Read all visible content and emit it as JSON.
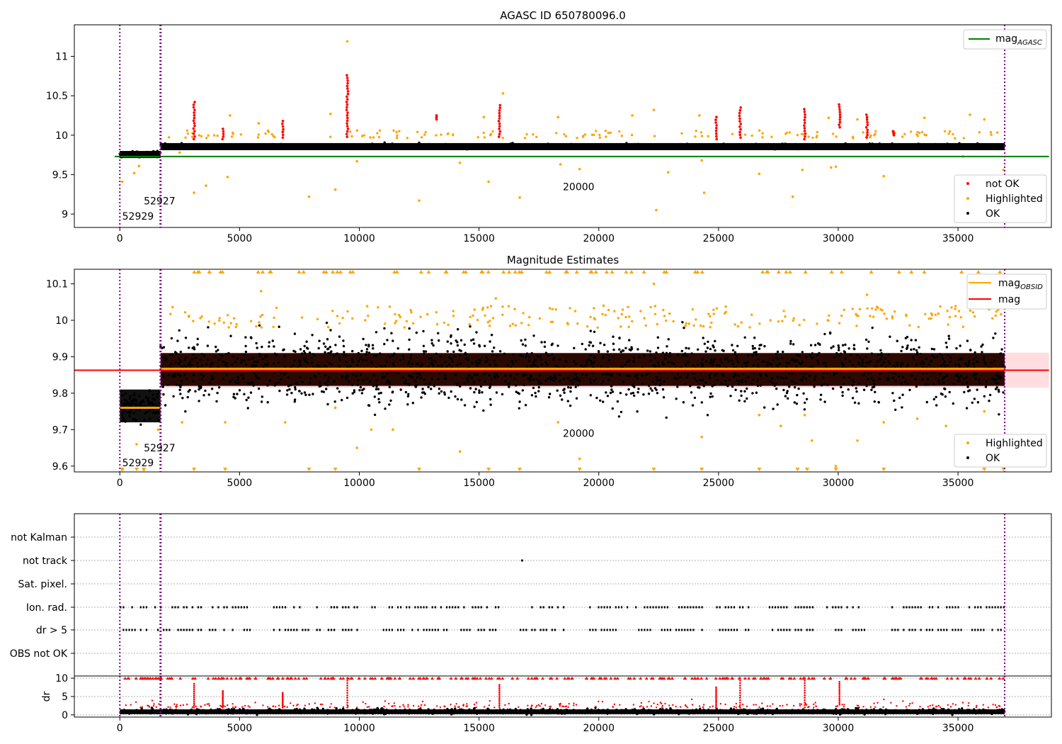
{
  "chart_data": [
    {
      "type": "scatter",
      "title": "AGASC ID 650780096.0",
      "xlabel": "",
      "ylabel": "",
      "xlim": [
        -1900,
        38900
      ],
      "ylim": [
        8.83,
        11.4
      ],
      "xticks": [
        0,
        5000,
        10000,
        15000,
        20000,
        25000,
        30000,
        35000,
        40000
      ],
      "yticks": [
        9.0,
        9.5,
        10.0,
        10.5,
        11.0
      ],
      "grid": false,
      "legend_upper": {
        "placement": "top-right",
        "entries": [
          {
            "label": "mag",
            "sub": "AGASC",
            "color": "#008000",
            "kind": "line"
          }
        ]
      },
      "legend_lower": {
        "placement": "bottom-right",
        "entries": [
          {
            "label": "not OK",
            "color": "#ff0000",
            "kind": "point"
          },
          {
            "label": "Highlighted",
            "color": "#ffa500",
            "kind": "point"
          },
          {
            "label": "OK",
            "color": "#000000",
            "kind": "point"
          }
        ]
      },
      "hlines": [
        {
          "name": "mag_AGASC",
          "y": 9.73,
          "x_range": [
            -1900,
            38800
          ],
          "color": "#008000"
        }
      ],
      "vlines": [
        {
          "x": 0,
          "color": "#800080"
        },
        {
          "x": 1700,
          "color": "#800080"
        },
        {
          "x": 36950,
          "color": "#800080"
        }
      ],
      "annotations": [
        {
          "text": "52927",
          "x": 1000,
          "y": 9.12
        },
        {
          "text": "52929",
          "x": 100,
          "y": 8.93
        },
        {
          "text": "20000",
          "x": 18500,
          "y": 9.3
        }
      ],
      "series": [
        {
          "name": "OK",
          "color": "#000000",
          "baseline_segments": [
            {
              "x": [
                0,
                1700
              ],
              "y": 9.76
            },
            {
              "x": [
                1700,
                36950
              ],
              "y": 9.86
            }
          ]
        },
        {
          "name": "not OK",
          "color": "#ff0000",
          "spikes": [
            {
              "x": 3100,
              "y": [
                9.95,
                10.42
              ]
            },
            {
              "x": 4300,
              "y": [
                9.95,
                10.08
              ]
            },
            {
              "x": 6800,
              "y": [
                9.97,
                10.18
              ]
            },
            {
              "x": 9500,
              "y": [
                9.98,
                10.76
              ]
            },
            {
              "x": 13200,
              "y": [
                10.2,
                10.25
              ]
            },
            {
              "x": 15850,
              "y": [
                9.98,
                10.38
              ]
            },
            {
              "x": 24900,
              "y": [
                9.95,
                10.23
              ]
            },
            {
              "x": 25900,
              "y": [
                9.97,
                10.35
              ]
            },
            {
              "x": 28600,
              "y": [
                9.95,
                10.33
              ]
            },
            {
              "x": 30050,
              "y": [
                10.1,
                10.39
              ]
            },
            {
              "x": 31200,
              "y": [
                9.97,
                10.26
              ]
            },
            {
              "x": 32300,
              "y": [
                10.0,
                10.05
              ]
            }
          ]
        },
        {
          "name": "Highlighted",
          "color": "#ffa500",
          "outliers": [
            [
              100,
              9.41
            ],
            [
              600,
              9.52
            ],
            [
              800,
              9.61
            ],
            [
              2500,
              9.78
            ],
            [
              3100,
              9.27
            ],
            [
              3600,
              9.36
            ],
            [
              4500,
              9.47
            ],
            [
              4600,
              10.25
            ],
            [
              5800,
              10.15
            ],
            [
              7900,
              9.22
            ],
            [
              8800,
              10.27
            ],
            [
              9000,
              9.31
            ],
            [
              9500,
              11.19
            ],
            [
              9900,
              9.67
            ],
            [
              12500,
              9.17
            ],
            [
              14200,
              9.65
            ],
            [
              15200,
              10.23
            ],
            [
              15400,
              9.41
            ],
            [
              16000,
              10.53
            ],
            [
              16700,
              9.21
            ],
            [
              18300,
              10.23
            ],
            [
              18400,
              9.63
            ],
            [
              19200,
              9.57
            ],
            [
              20300,
              9.98
            ],
            [
              21400,
              10.25
            ],
            [
              22300,
              10.32
            ],
            [
              22400,
              9.05
            ],
            [
              22900,
              9.53
            ],
            [
              24200,
              10.25
            ],
            [
              24300,
              9.68
            ],
            [
              24400,
              9.27
            ],
            [
              26700,
              9.51
            ],
            [
              28100,
              9.22
            ],
            [
              28500,
              9.56
            ],
            [
              29600,
              10.22
            ],
            [
              29700,
              9.59
            ],
            [
              29900,
              9.6
            ],
            [
              30800,
              10.2
            ],
            [
              31200,
              10.22
            ],
            [
              31900,
              9.48
            ],
            [
              33600,
              10.22
            ],
            [
              35200,
              9.73
            ],
            [
              35500,
              10.26
            ],
            [
              36100,
              10.2
            ],
            [
              36200,
              9.44
            ],
            [
              36900,
              9.56
            ]
          ]
        }
      ]
    },
    {
      "type": "scatter",
      "title": "Magnitude Estimates",
      "xlabel": "",
      "ylabel": "",
      "xlim": [
        -1900,
        38900
      ],
      "ylim": [
        9.584,
        10.14
      ],
      "xticks": [
        0,
        5000,
        10000,
        15000,
        20000,
        25000,
        30000,
        35000,
        40000
      ],
      "yticks": [
        9.6,
        9.7,
        9.8,
        9.9,
        10.0,
        10.1
      ],
      "grid": false,
      "legend_upper": {
        "placement": "top-right",
        "entries": [
          {
            "label": "mag",
            "sub": "OBSID",
            "color": "#ffa500",
            "kind": "line"
          },
          {
            "label": "mag",
            "sub": "",
            "color": "#ff0000",
            "kind": "line"
          }
        ]
      },
      "legend_lower": {
        "placement": "bottom-right",
        "entries": [
          {
            "label": "Highlighted",
            "color": "#ffa500",
            "kind": "point"
          },
          {
            "label": "OK",
            "color": "#000000",
            "kind": "point"
          }
        ]
      },
      "hlines": [
        {
          "name": "mag",
          "y": 9.863,
          "x_range": [
            -1900,
            38800
          ],
          "color": "#ff0000",
          "band": [
            9.815,
            9.911
          ]
        }
      ],
      "obsid_levels": [
        {
          "x": [
            0,
            1700
          ],
          "y": 9.76
        },
        {
          "x": [
            1700,
            36950
          ],
          "y": 9.867
        }
      ],
      "vlines": [
        {
          "x": 0,
          "color": "#800080"
        },
        {
          "x": 1700,
          "color": "#800080"
        },
        {
          "x": 36950,
          "color": "#800080"
        }
      ],
      "annotations": [
        {
          "text": "52927",
          "x": 1000,
          "y": 9.64
        },
        {
          "text": "52929",
          "x": 100,
          "y": 9.6
        },
        {
          "text": "20000",
          "x": 18500,
          "y": 9.68
        }
      ],
      "series": [
        {
          "name": "OK",
          "color": "#000000",
          "range_segments": [
            {
              "x": [
                0,
                1700
              ],
              "y": [
                9.72,
                9.81
              ]
            },
            {
              "x": [
                1700,
                36950
              ],
              "y": [
                9.76,
                9.97
              ]
            }
          ]
        },
        {
          "name": "Highlighted",
          "color": "#ffa500",
          "outliers": [
            [
              100,
              9.59
            ],
            [
              700,
              9.66
            ],
            [
              1000,
              9.59
            ],
            [
              1600,
              9.7
            ],
            [
              2600,
              9.72
            ],
            [
              4400,
              9.72
            ],
            [
              5900,
              10.08
            ],
            [
              6900,
              9.72
            ],
            [
              9000,
              9.76
            ],
            [
              9900,
              9.65
            ],
            [
              10500,
              9.7
            ],
            [
              11400,
              9.7
            ],
            [
              14200,
              9.64
            ],
            [
              15700,
              10.06
            ],
            [
              18300,
              9.72
            ],
            [
              19200,
              9.62
            ],
            [
              20200,
              10.04
            ],
            [
              22300,
              10.1
            ],
            [
              24300,
              9.68
            ],
            [
              26700,
              9.74
            ],
            [
              27600,
              9.71
            ],
            [
              28600,
              9.74
            ],
            [
              28900,
              9.67
            ],
            [
              29900,
              9.6
            ],
            [
              30800,
              9.67
            ],
            [
              31200,
              10.07
            ],
            [
              31900,
              9.72
            ],
            [
              33300,
              9.73
            ],
            [
              34500,
              9.71
            ],
            [
              36100,
              9.75
            ],
            [
              36300,
              10.03
            ]
          ]
        }
      ]
    },
    {
      "type": "scatter",
      "title": "",
      "xlabel": "",
      "ylabel": "",
      "xlim": [
        -1900,
        38900
      ],
      "categories": [
        "not Kalman",
        "not track",
        "Sat. pixel.",
        "Ion. rad.",
        "dr > 5",
        "OBS not OK"
      ],
      "grid": true,
      "vlines": [
        {
          "x": 0,
          "color": "#800080"
        },
        {
          "x": 1700,
          "color": "#800080"
        },
        {
          "x": 36950,
          "color": "#800080"
        }
      ],
      "series": [
        {
          "name": "not track",
          "color": "#000000",
          "points": [
            [
              16800,
              "not track"
            ]
          ]
        },
        {
          "name": "Ion. rad.",
          "color": "#000000",
          "x_ranges": [
            [
              0,
              5400
            ],
            [
              6400,
              9900
            ],
            [
              10500,
              15900
            ],
            [
              16700,
              18600
            ],
            [
              19600,
              24300
            ],
            [
              24900,
              26300
            ],
            [
              27100,
              31100
            ],
            [
              32100,
              35200
            ],
            [
              35200,
              36950
            ]
          ]
        },
        {
          "name": "dr > 5",
          "color": "#000000",
          "x_ranges": [
            [
              0,
              5400
            ],
            [
              6400,
              9900
            ],
            [
              10500,
              15900
            ],
            [
              16700,
              18600
            ],
            [
              19600,
              24300
            ],
            [
              24900,
              26300
            ],
            [
              27100,
              31100
            ],
            [
              32100,
              35200
            ],
            [
              35200,
              36950
            ]
          ]
        }
      ]
    },
    {
      "type": "scatter",
      "title": "",
      "xlabel": "",
      "ylabel": "dr",
      "xlim": [
        -1900,
        38900
      ],
      "ylim": [
        -0.6,
        10.6
      ],
      "xticks": [
        0,
        5000,
        10000,
        15000,
        20000,
        25000,
        30000,
        35000,
        40000
      ],
      "yticks": [
        0,
        5,
        10
      ],
      "grid": true,
      "vlines": [
        {
          "x": 0,
          "color": "#800080"
        },
        {
          "x": 1700,
          "color": "#800080"
        },
        {
          "x": 36950,
          "color": "#800080"
        }
      ],
      "series": [
        {
          "name": "dr OK",
          "color": "#000000",
          "range_segments": [
            {
              "x": [
                0,
                36950
              ],
              "y": [
                0,
                2
              ]
            }
          ]
        },
        {
          "name": "dr > 5",
          "color": "#ff0000",
          "spikes": [
            {
              "x": 3100,
              "y": [
                2,
                8.5
              ]
            },
            {
              "x": 4300,
              "y": [
                2,
                6.5
              ]
            },
            {
              "x": 6800,
              "y": [
                2,
                6
              ]
            },
            {
              "x": 9500,
              "y": [
                2,
                10
              ]
            },
            {
              "x": 15850,
              "y": [
                2,
                8.2
              ]
            },
            {
              "x": 24900,
              "y": [
                2,
                7.5
              ]
            },
            {
              "x": 25900,
              "y": [
                2,
                10
              ]
            },
            {
              "x": 28600,
              "y": [
                2,
                10
              ]
            },
            {
              "x": 30050,
              "y": [
                3,
                9
              ]
            }
          ],
          "capped_at": 10
        }
      ]
    }
  ]
}
